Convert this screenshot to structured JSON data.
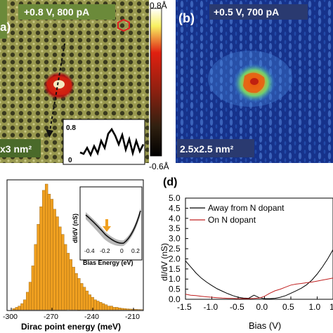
{
  "panel_a": {
    "label": "a)",
    "bias": "+0.8 V, 800 pA",
    "scale": "x3 nm²",
    "inset_yticks": [
      "0.8",
      "0"
    ],
    "inset_profile": [
      0.22,
      0.18,
      0.35,
      0.15,
      0.4,
      0.2,
      0.55,
      0.35,
      0.75,
      0.88,
      0.7,
      0.45,
      0.72,
      0.3,
      0.6,
      0.2,
      0.55,
      0.25,
      0.45
    ],
    "colorbar_top": "0.8Å",
    "colorbar_bottom": "-0.6Å"
  },
  "panel_b": {
    "label": "(b)",
    "bias": "+0.5 V, 700 pA",
    "scale": "2.5x2.5 nm²"
  },
  "panel_c": {
    "xlabel": "Dirac point energy (meV)",
    "xticks": [
      "-300",
      "-270",
      "-240",
      "-210"
    ],
    "inset": {
      "xlabel": "Bias Energy (eV)",
      "ylabel": "dI/dV (nS)",
      "xticks": [
        "-0.4",
        "-0.2",
        "0",
        "0.2"
      ]
    }
  },
  "chart_data": [
    {
      "type": "bar",
      "title": "",
      "xlabel": "Dirac point energy (meV)",
      "ylabel": "",
      "xlim": [
        -300,
        -200
      ],
      "x": [
        -298,
        -296,
        -294,
        -292,
        -290,
        -288,
        -286,
        -284,
        -282,
        -280,
        -278,
        -276,
        -274,
        -272,
        -270,
        -268,
        -266,
        -264,
        -262,
        -260,
        -258,
        -256,
        -254,
        -252,
        -250,
        -248,
        -246,
        -244,
        -242,
        -240,
        -238,
        -236,
        -234,
        -232,
        -230,
        -228,
        -226,
        -224,
        -222,
        -220,
        -218,
        -216,
        -214,
        -212,
        -210,
        -208,
        -206,
        -204
      ],
      "values": [
        1,
        2,
        3,
        5,
        8,
        14,
        22,
        35,
        52,
        68,
        82,
        95,
        100,
        92,
        88,
        80,
        74,
        66,
        60,
        52,
        45,
        40,
        34,
        29,
        25,
        21,
        18,
        15,
        12,
        10,
        8,
        7,
        6,
        5,
        4,
        3,
        3,
        2,
        2,
        1.5,
        1.2,
        1,
        0.8,
        0.6,
        0.5,
        0.4,
        0.3,
        0.2
      ]
    },
    {
      "type": "line",
      "title": "",
      "xlabel": "Bias (V)",
      "ylabel": "dI/dV (nS)",
      "xlim": [
        -1.5,
        1.3
      ],
      "ylim": [
        0,
        5.0
      ],
      "xticks": [
        "-1.5",
        "-1.0",
        "-0.5",
        "0.0",
        "0.5",
        "1.0",
        "1"
      ],
      "yticks": [
        "0.0",
        "0.5",
        "1.0",
        "1.5",
        "2.0",
        "2.5",
        "3.0",
        "3.5",
        "4.0",
        "4.5",
        "5.0"
      ],
      "legend_position": "top-left",
      "series": [
        {
          "name": "Away from N dopant",
          "color": "#000000",
          "x": [
            -1.5,
            -1.4,
            -1.3,
            -1.2,
            -1.1,
            -1.0,
            -0.9,
            -0.8,
            -0.7,
            -0.6,
            -0.5,
            -0.4,
            -0.3,
            -0.2,
            -0.1,
            0.0,
            0.1,
            0.2,
            0.3,
            0.4,
            0.5,
            0.6,
            0.7,
            0.8,
            0.9,
            1.0,
            1.1,
            1.2,
            1.3
          ],
          "y": [
            1.9,
            1.6,
            1.3,
            1.05,
            0.85,
            0.68,
            0.52,
            0.4,
            0.28,
            0.18,
            0.1,
            0.06,
            0.05,
            0.2,
            0.08,
            0.03,
            0.03,
            0.05,
            0.1,
            0.18,
            0.3,
            0.42,
            0.55,
            0.72,
            0.95,
            1.25,
            1.6,
            2.0,
            2.45
          ]
        },
        {
          "name": "On N dopant",
          "color": "#c02020",
          "x": [
            -1.5,
            -1.4,
            -1.3,
            -1.2,
            -1.1,
            -1.0,
            -0.9,
            -0.8,
            -0.7,
            -0.6,
            -0.5,
            -0.4,
            -0.3,
            -0.2,
            -0.1,
            0.0,
            0.1,
            0.2,
            0.3,
            0.4,
            0.5,
            0.6,
            0.7,
            0.8,
            0.9,
            1.0,
            1.1,
            1.2,
            1.3
          ],
          "y": [
            0.25,
            0.2,
            0.18,
            0.15,
            0.12,
            0.1,
            0.08,
            0.06,
            0.05,
            0.04,
            0.03,
            0.03,
            0.03,
            0.04,
            0.06,
            0.15,
            0.3,
            0.42,
            0.5,
            0.6,
            0.7,
            0.75,
            0.78,
            0.82,
            0.85,
            0.9,
            0.95,
            1.0,
            1.05
          ]
        }
      ]
    }
  ],
  "panel_d": {
    "label": "(d)",
    "xlabel": "Bias (V)",
    "ylabel": "dI/dV (nS)"
  }
}
